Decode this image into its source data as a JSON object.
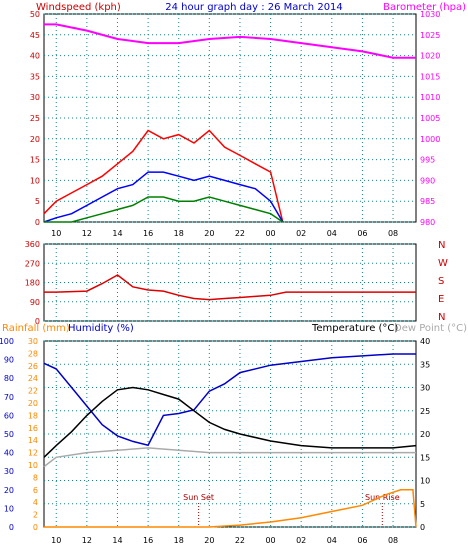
{
  "header": {
    "windspeed_label": "Windspeed (kph)",
    "title": "24 hour graph day : 26 March 2014",
    "barometer_label": "Barometer (hpa)"
  },
  "colors": {
    "background": "#ffffff",
    "plot_bg": "#ffffff",
    "grid": "#0a8a8a",
    "wind_gust": "#ff0000",
    "wind_avg": "#0000ff",
    "wind_low": "#008000",
    "barometer": "#ff00ff",
    "direction": "#dd0000",
    "temperature": "#0000c8",
    "dewpoint": "#000000",
    "humidity": "#aaaaaa",
    "rain": "#ff8800",
    "axis_left": "#cc0000",
    "axis_right_pink": "#ff00ff",
    "axis_blue": "#0000cc",
    "axis_rain": "#ff8800"
  },
  "chart_data": [
    {
      "type": "line",
      "title": "24 hour graph day : 26 March 2014",
      "x_ticks": [
        "10",
        "12",
        "14",
        "16",
        "18",
        "20",
        "22",
        "00",
        "02",
        "04",
        "06",
        "08"
      ],
      "y_left_label": "Windspeed (kph)",
      "y_left_ticks": [
        0,
        5,
        10,
        15,
        20,
        25,
        30,
        35,
        40,
        45,
        50
      ],
      "y_left_lim": [
        0,
        50
      ],
      "y_right_label": "Barometer (hpa)",
      "y_right_ticks": [
        980,
        985,
        990,
        995,
        1000,
        1005,
        1010,
        1015,
        1020,
        1025,
        1030
      ],
      "y_right_lim": [
        980,
        1030
      ],
      "series": [
        {
          "name": "Windspeed gust",
          "axis": "left",
          "x": [
            9.2,
            10.0,
            11.0,
            12.0,
            13.0,
            14.0,
            15.0,
            16.0,
            17.0,
            18.0,
            19.0,
            20.0,
            21.0,
            22.0,
            23.0,
            24.0,
            24.8
          ],
          "values": [
            2,
            5,
            7,
            9,
            11,
            14,
            17,
            22,
            20,
            21,
            19,
            22,
            18,
            16,
            14,
            12,
            0
          ]
        },
        {
          "name": "Windspeed average",
          "axis": "left",
          "x": [
            9.2,
            10.0,
            11.0,
            12.0,
            13.0,
            14.0,
            15.0,
            16.0,
            17.0,
            18.0,
            19.0,
            20.0,
            21.0,
            22.0,
            23.0,
            24.0,
            24.8
          ],
          "values": [
            0,
            1,
            2,
            4,
            6,
            8,
            9,
            12,
            12,
            11,
            10,
            11,
            10,
            9,
            8,
            5,
            0
          ]
        },
        {
          "name": "Windspeed low",
          "axis": "left",
          "x": [
            9.2,
            10.0,
            11.0,
            12.0,
            13.0,
            14.0,
            15.0,
            16.0,
            17.0,
            18.0,
            19.0,
            20.0,
            21.0,
            22.0,
            23.0,
            24.0,
            24.8
          ],
          "values": [
            0,
            0,
            0,
            1,
            2,
            3,
            4,
            6,
            6,
            5,
            5,
            6,
            5,
            4,
            3,
            2,
            0
          ]
        },
        {
          "name": "Barometer",
          "axis": "right",
          "x": [
            9.2,
            10.0,
            12.0,
            14.0,
            16.0,
            18.0,
            20.0,
            22.0,
            24.0,
            26.0,
            28.0,
            30.0,
            32.0,
            33.5
          ],
          "values": [
            1027.5,
            1027.5,
            1026,
            1024,
            1023,
            1023,
            1024,
            1024.5,
            1024,
            1023,
            1022,
            1021,
            1019.5,
            1019.5
          ]
        }
      ]
    },
    {
      "type": "line",
      "x_ticks": [
        "10",
        "12",
        "14",
        "16",
        "18",
        "20",
        "22",
        "00",
        "02",
        "04",
        "06",
        "08"
      ],
      "y_ticks": [
        0,
        90,
        180,
        270,
        360
      ],
      "y_lim": [
        0,
        360
      ],
      "compass_labels": [
        "N",
        "W",
        "S",
        "E",
        "N"
      ],
      "series": [
        {
          "name": "Wind direction",
          "x": [
            9.2,
            10.0,
            12.0,
            13.0,
            14.0,
            15.0,
            16.0,
            17.0,
            18.0,
            19.0,
            20.0,
            21.0,
            22.0,
            23.0,
            24.0,
            25.0,
            33.5
          ],
          "values": [
            135,
            135,
            140,
            175,
            215,
            160,
            145,
            140,
            120,
            105,
            100,
            105,
            110,
            115,
            120,
            135,
            135
          ]
        }
      ]
    },
    {
      "type": "line",
      "x_ticks": [
        "10",
        "12",
        "14",
        "16",
        "18",
        "20",
        "22",
        "00",
        "02",
        "04",
        "06",
        "08"
      ],
      "labels": {
        "rainfall": "Rainfall (mm)",
        "humidity": "Humidity (%)",
        "temperature": "Temperature (°C)",
        "dewpoint": "Dew Point (°C)",
        "sunset": "Sun Set",
        "sunrise": "Sun Rise"
      },
      "y_humidity_ticks": [
        0,
        10,
        20,
        30,
        40,
        50,
        60,
        70,
        80,
        90,
        100
      ],
      "y_rain_ticks": [
        0,
        2,
        4,
        6,
        8,
        10,
        12,
        14,
        16,
        18,
        20,
        22,
        24,
        26,
        28,
        30
      ],
      "y_temp_ticks": [
        0,
        5,
        10,
        15,
        20,
        25,
        30,
        35,
        40
      ],
      "y_temp_lim": [
        0,
        40
      ],
      "sunset_hour": 19.3,
      "sunrise_hour": 31.3,
      "series": [
        {
          "name": "Humidity",
          "axis": "humidity",
          "x": [
            9.2,
            10.0,
            11.0,
            12.0,
            13.0,
            14.0,
            15.0,
            16.0,
            17.0,
            18.0,
            19.0,
            20.0,
            21.0,
            22.0,
            24.0,
            26.0,
            28.0,
            30.0,
            32.0,
            33.5
          ],
          "values": [
            88,
            85,
            75,
            65,
            55,
            49,
            46,
            44,
            60,
            61,
            63,
            73,
            77,
            83,
            87,
            89,
            91,
            92,
            93,
            93
          ]
        },
        {
          "name": "Temperature",
          "axis": "temp",
          "x": [
            9.2,
            10.0,
            11.0,
            12.0,
            13.0,
            14.0,
            15.0,
            16.0,
            17.0,
            18.0,
            19.0,
            20.0,
            21.0,
            22.0,
            24.0,
            26.0,
            28.0,
            30.0,
            32.0,
            33.5
          ],
          "values": [
            15,
            17.5,
            20.5,
            24,
            27,
            29.5,
            30,
            29.5,
            28.5,
            27.5,
            25,
            22.5,
            21,
            20,
            18.5,
            17.5,
            17,
            17,
            17,
            17.5
          ]
        },
        {
          "name": "Dew Point",
          "axis": "temp",
          "x": [
            9.2,
            10.0,
            12.0,
            14.0,
            16.0,
            18.0,
            20.0,
            22.0,
            24.0,
            26.0,
            28.0,
            30.0,
            32.0,
            33.5
          ],
          "values": [
            13,
            15,
            16,
            16.5,
            17,
            16.5,
            16,
            16,
            16,
            16,
            16,
            16,
            16,
            16
          ]
        },
        {
          "name": "Rainfall",
          "axis": "rain",
          "x": [
            9.2,
            10.0,
            12.0,
            14.0,
            16.0,
            18.0,
            20.0,
            22.0,
            24.0,
            26.0,
            28.0,
            30.0,
            31.5,
            32.5,
            33.3,
            33.5
          ],
          "values": [
            0,
            0,
            0,
            0,
            0,
            0,
            0,
            0.3,
            0.8,
            1.5,
            2.5,
            3.5,
            5.2,
            6,
            6,
            0
          ]
        }
      ]
    }
  ]
}
